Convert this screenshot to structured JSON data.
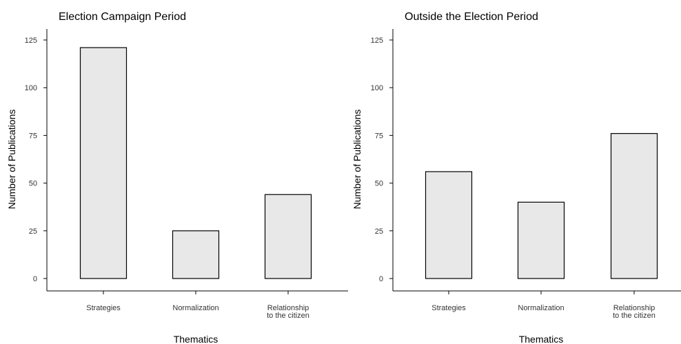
{
  "colors": {
    "bar_fill": "#e8e8e8",
    "bar_stroke": "#000000"
  },
  "chart_data": [
    {
      "type": "bar",
      "title": "Election Campaign Period",
      "xlabel": "Thematics",
      "ylabel": "Number of Publications",
      "categories": [
        [
          "Strategies"
        ],
        [
          "Normalization"
        ],
        [
          "Relationship",
          "to the citizen"
        ]
      ],
      "values": [
        121,
        25,
        44
      ],
      "ylim": [
        0,
        125
      ],
      "yticks": [
        0,
        25,
        50,
        75,
        100,
        125
      ],
      "grid": false
    },
    {
      "type": "bar",
      "title": "Outside the Election Period",
      "xlabel": "Thematics",
      "ylabel": "Number of Publications",
      "categories": [
        [
          "Strategies"
        ],
        [
          "Normalization"
        ],
        [
          "Relationship",
          "to the citizen"
        ]
      ],
      "values": [
        56,
        40,
        76
      ],
      "ylim": [
        0,
        125
      ],
      "yticks": [
        0,
        25,
        50,
        75,
        100,
        125
      ],
      "grid": false
    }
  ]
}
